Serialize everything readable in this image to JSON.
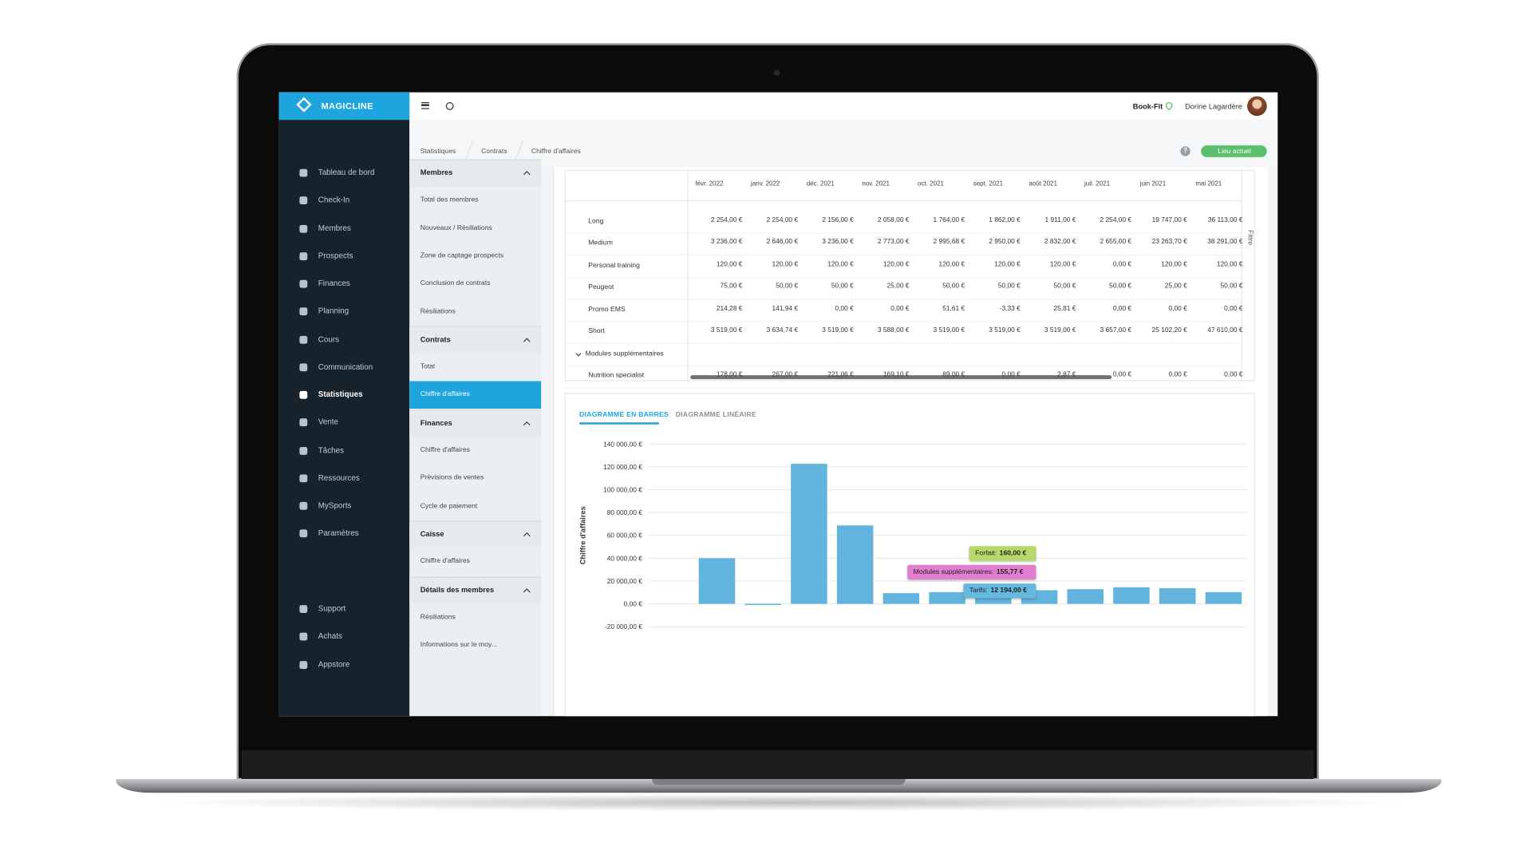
{
  "header": {
    "brand": "MAGICLINE",
    "location": "Book-Fit",
    "user": "Dorine Lagardère"
  },
  "sidebar": {
    "items": [
      "Tableau de bord",
      "Check-In",
      "Membres",
      "Prospects",
      "Finances",
      "Planning",
      "Cours",
      "Communication",
      "Statistiques",
      "Vente",
      "Tâches",
      "Ressources",
      "MySports",
      "Paramètres"
    ],
    "bottom_items": [
      "Support",
      "Achats",
      "Appstore"
    ]
  },
  "submenu": {
    "sections": [
      {
        "title": "Membres",
        "items": [
          "Total des membres",
          "Nouveaux / Résiliations",
          "Zone de captage prospects",
          "Conclusion de contrats",
          "Résiliations"
        ]
      },
      {
        "title": "Contrats",
        "items": [
          "Total",
          "Chiffre d'affaires"
        ]
      },
      {
        "title": "Finances",
        "items": [
          "Chiffre d'affaires",
          "Prévisions de ventes",
          "Cycle de paiement"
        ]
      },
      {
        "title": "Caisse",
        "items": [
          "Chiffre d'affaires"
        ]
      },
      {
        "title": "Détails des membres",
        "items": [
          "Résiliations",
          "Informations sur le moy..."
        ]
      }
    ]
  },
  "breadcrumb": [
    "Statistiques",
    "Contrats",
    "Chiffre d'affaires"
  ],
  "location_button": "Lieu actuel",
  "filter": "Filtre",
  "table": {
    "columns": [
      "févr. 2022",
      "janv. 2022",
      "déc. 2021",
      "nov. 2021",
      "oct. 2021",
      "sept. 2021",
      "août 2021",
      "juil. 2021",
      "juin 2021",
      "mai 2021"
    ],
    "rows": [
      {
        "label": "Long",
        "cells": [
          "2 254,00 €",
          "2 254,00 €",
          "2 156,00 €",
          "2 058,00 €",
          "1 764,00 €",
          "1 862,00 €",
          "1 911,00 €",
          "2 254,00 €",
          "19 747,00 €",
          "36 113,00 €"
        ]
      },
      {
        "label": "Medium",
        "cells": [
          "3 236,00 €",
          "2 646,00 €",
          "3 236,00 €",
          "2 773,00 €",
          "2 995,68 €",
          "2 950,00 €",
          "2 832,00 €",
          "2 655,00 €",
          "23 263,70 €",
          "38 291,00 €"
        ]
      },
      {
        "label": "Personal training",
        "cells": [
          "120,00 €",
          "120,00 €",
          "120,00 €",
          "120,00 €",
          "120,00 €",
          "120,00 €",
          "120,00 €",
          "0,00 €",
          "120,00 €",
          "120,00 €"
        ]
      },
      {
        "label": "Peugeot",
        "cells": [
          "75,00 €",
          "50,00 €",
          "50,00 €",
          "25,00 €",
          "50,00 €",
          "50,00 €",
          "50,00 €",
          "50,00 €",
          "25,00 €",
          "50,00 €"
        ]
      },
      {
        "label": "Promo EMS",
        "cells": [
          "214,28 €",
          "141,94 €",
          "0,00 €",
          "0,00 €",
          "51,61 €",
          "-3,33 €",
          "25,81 €",
          "0,00 €",
          "0,00 €",
          "0,00 €"
        ]
      },
      {
        "label": "Short",
        "cells": [
          "3 519,00 €",
          "3 634,74 €",
          "3 519,00 €",
          "3 588,00 €",
          "3 519,00 €",
          "3 519,00 €",
          "3 519,00 €",
          "3 657,00 €",
          "25 102,20 €",
          "47 610,00 €"
        ]
      },
      {
        "label": "Modules supplémentaires"
      },
      {
        "label": "Nutrition specialist",
        "cells": [
          "178,00 €",
          "267,00 €",
          "221,06 €",
          "169,10 €",
          "89,00 €",
          "0,00 €",
          "2,87 €",
          "0,00 €",
          "0,00 €",
          "0,00 €"
        ]
      }
    ]
  },
  "tabs": [
    "DIAGRAMME EN BARRES",
    "DIAGRAMME LINÉAIRE"
  ],
  "chart_data": {
    "type": "bar",
    "y_label": "Chiffre d'affaires",
    "values": [
      40000,
      -1000,
      122700,
      68700,
      9400,
      10300,
      12500,
      12000,
      12900,
      14600,
      13700,
      10300
    ],
    "color": "#63b4dc",
    "ylim": [
      -20000,
      140000
    ],
    "yticks": [
      {
        "value": -20000,
        "label": "-20 000,00 €"
      },
      {
        "value": 0,
        "label": "0,00 €"
      },
      {
        "value": 20000,
        "label": "20 000,00 €"
      },
      {
        "value": 40000,
        "label": "40 000,00 €"
      },
      {
        "value": 60000,
        "label": "60 000,00 €"
      },
      {
        "value": 80000,
        "label": "80 000,00 €"
      },
      {
        "value": 100000,
        "label": "100 000,00 €"
      },
      {
        "value": 120000,
        "label": "120 000,00 €"
      },
      {
        "value": 140000,
        "label": "140 000,00 €"
      }
    ],
    "grid": true,
    "tooltip": [
      {
        "label": "Forfait:",
        "value": "160,00 €",
        "color": "#b7d96c"
      },
      {
        "label": "Modules supplémentaires:",
        "value": "155,77 €",
        "color": "#e07fcf"
      },
      {
        "label": "Tarifs:",
        "value": "12 194,00 €",
        "color": "#66b8de"
      }
    ]
  }
}
